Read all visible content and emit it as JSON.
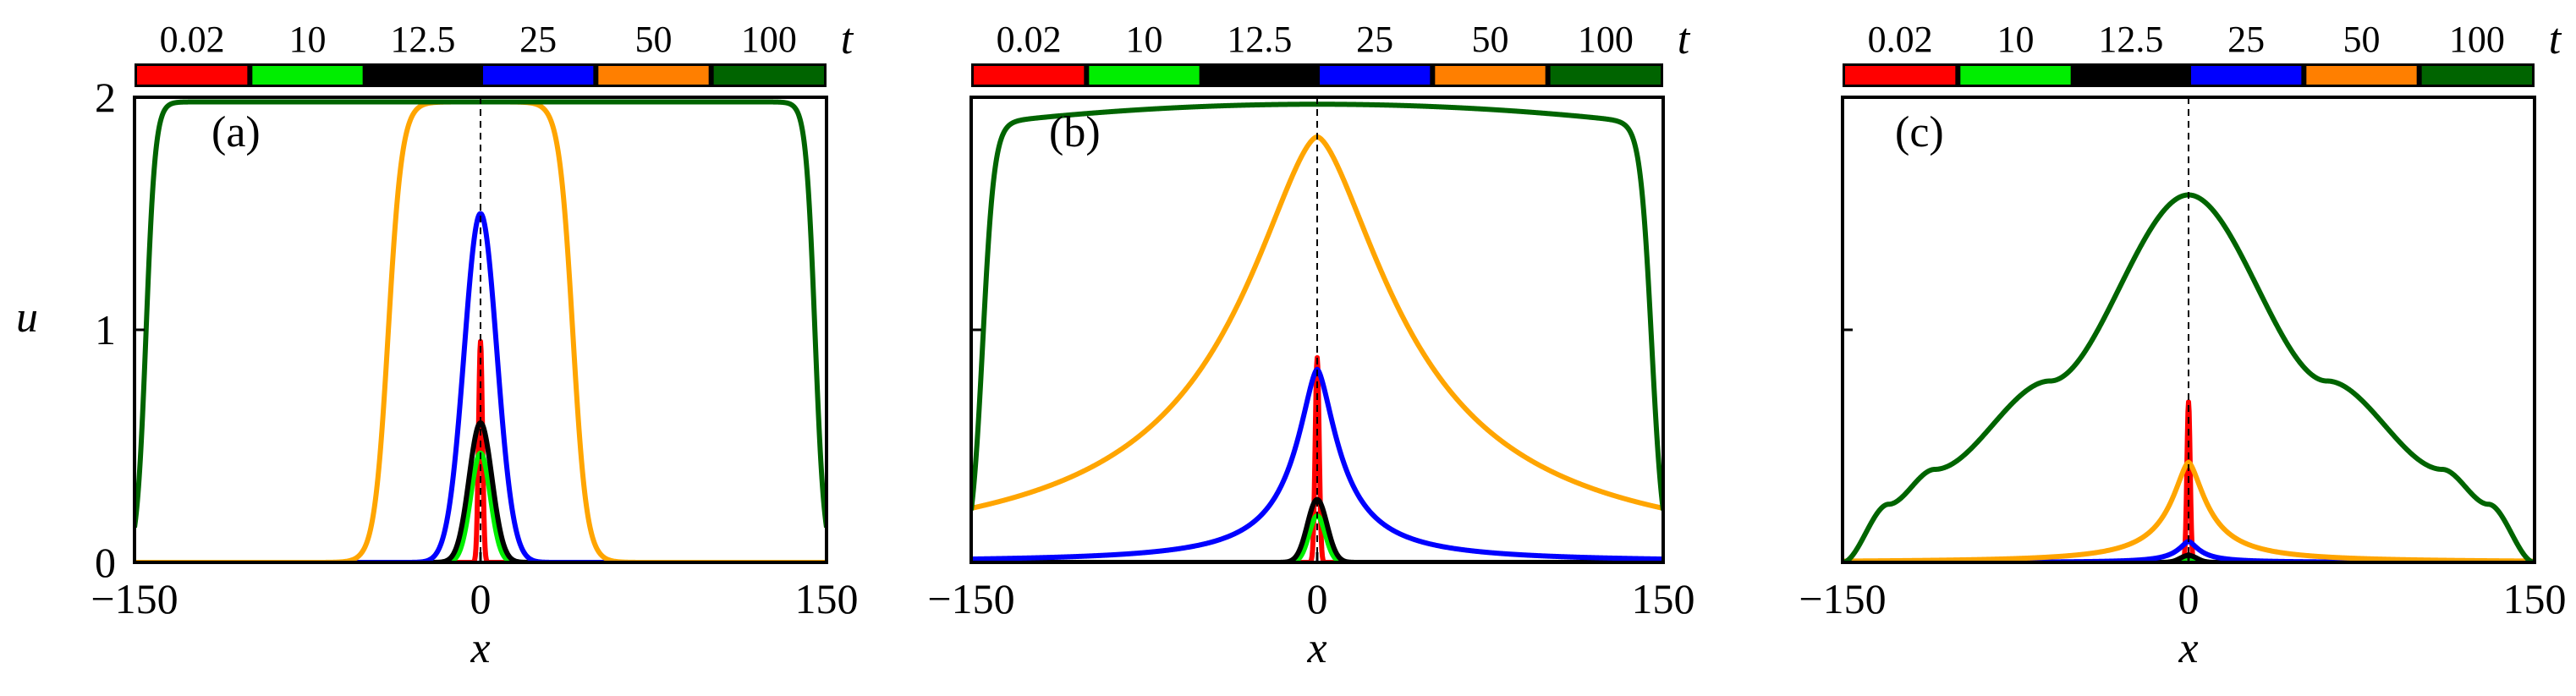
{
  "figure": {
    "y_axis_label": "u",
    "legend_symbol": "t",
    "panels": [
      {
        "id": "a",
        "label": "(a)"
      },
      {
        "id": "b",
        "label": "(b)"
      },
      {
        "id": "c",
        "label": "(c)"
      }
    ]
  },
  "legend": {
    "entries": [
      {
        "t": "0.02",
        "color": "#ff0000"
      },
      {
        "t": "10",
        "color": "#00ee00"
      },
      {
        "t": "12.5",
        "color": "#000000"
      },
      {
        "t": "25",
        "color": "#0000ff"
      },
      {
        "t": "50",
        "color": "#ff7f00"
      },
      {
        "t": "100",
        "color": "#006400"
      }
    ]
  },
  "chart_data": [
    {
      "type": "line",
      "panel": "(a)",
      "xlabel": "x",
      "ylabel": "u",
      "xlim": [
        -150,
        150
      ],
      "ylim": [
        0,
        2
      ],
      "x_ticks": [
        "-150",
        "0",
        "150"
      ],
      "y_ticks": [
        "0",
        "1",
        "2"
      ],
      "grid": false,
      "vertical_reference_line_x": 0,
      "series": [
        {
          "name": "0.02",
          "color": "#ff0000",
          "shape": "gaussian",
          "peak": 0.95,
          "half_width": 1.2
        },
        {
          "name": "10",
          "color": "#00ee00",
          "shape": "gaussian",
          "peak": 0.47,
          "half_width": 6
        },
        {
          "name": "12.5",
          "color": "#000000",
          "shape": "gaussian",
          "peak": 0.6,
          "half_width": 7
        },
        {
          "name": "25",
          "color": "#0000ff",
          "shape": "gaussian",
          "peak": 1.5,
          "half_width": 10
        },
        {
          "name": "50",
          "color": "#ffa500",
          "shape": "plateau",
          "peak": 1.98,
          "half_width": 40,
          "edge_width": 3
        },
        {
          "name": "100",
          "color": "#006400",
          "shape": "plateau",
          "peak": 1.98,
          "half_width": 145,
          "edge_width": 2
        }
      ]
    },
    {
      "type": "line",
      "panel": "(b)",
      "xlabel": "x",
      "xlim": [
        -150,
        150
      ],
      "ylim": [
        0,
        2
      ],
      "x_ticks": [
        "-150",
        "0",
        "150"
      ],
      "grid": false,
      "vertical_reference_line_x": 0,
      "series": [
        {
          "name": "0.02",
          "color": "#ff0000",
          "shape": "gaussian",
          "peak": 0.88,
          "half_width": 1.2
        },
        {
          "name": "10",
          "color": "#00ee00",
          "shape": "gaussian",
          "peak": 0.2,
          "half_width": 5
        },
        {
          "name": "12.5",
          "color": "#000000",
          "shape": "gaussian",
          "peak": 0.27,
          "half_width": 6
        },
        {
          "name": "25",
          "color": "#0000ff",
          "shape": "peaked",
          "peak": 0.83,
          "half_width": 12
        },
        {
          "name": "50",
          "color": "#ffa500",
          "shape": "peaked",
          "peak": 1.83,
          "half_width": 45
        },
        {
          "name": "100",
          "color": "#006400",
          "shape": "plateau_slope",
          "peak": 1.97,
          "edge_value": 1.88,
          "half_width": 145,
          "edge_width": 2.5
        }
      ]
    },
    {
      "type": "line",
      "panel": "(c)",
      "xlabel": "x",
      "xlim": [
        -150,
        150
      ],
      "ylim": [
        0,
        2
      ],
      "x_ticks": [
        "-150",
        "0",
        "150"
      ],
      "grid": false,
      "vertical_reference_line_x": 0,
      "series": [
        {
          "name": "0.02",
          "color": "#ff0000",
          "shape": "gaussian",
          "peak": 0.69,
          "half_width": 1
        },
        {
          "name": "10",
          "color": "#00ee00",
          "shape": "gaussian",
          "peak": 0.02,
          "half_width": 4
        },
        {
          "name": "12.5",
          "color": "#000000",
          "shape": "gaussian",
          "peak": 0.03,
          "half_width": 5
        },
        {
          "name": "25",
          "color": "#0000ff",
          "shape": "peaked",
          "peak": 0.09,
          "half_width": 6
        },
        {
          "name": "50",
          "color": "#ffa500",
          "shape": "peaked",
          "peak": 0.43,
          "half_width": 10
        },
        {
          "name": "100",
          "color": "#006400",
          "shape": "tent",
          "points": [
            [
              -150,
              0
            ],
            [
              -130,
              0.25
            ],
            [
              -110,
              0.4
            ],
            [
              -60,
              0.78
            ],
            [
              0,
              1.58
            ],
            [
              60,
              0.78
            ],
            [
              110,
              0.4
            ],
            [
              130,
              0.25
            ],
            [
              150,
              0
            ]
          ]
        }
      ]
    }
  ]
}
